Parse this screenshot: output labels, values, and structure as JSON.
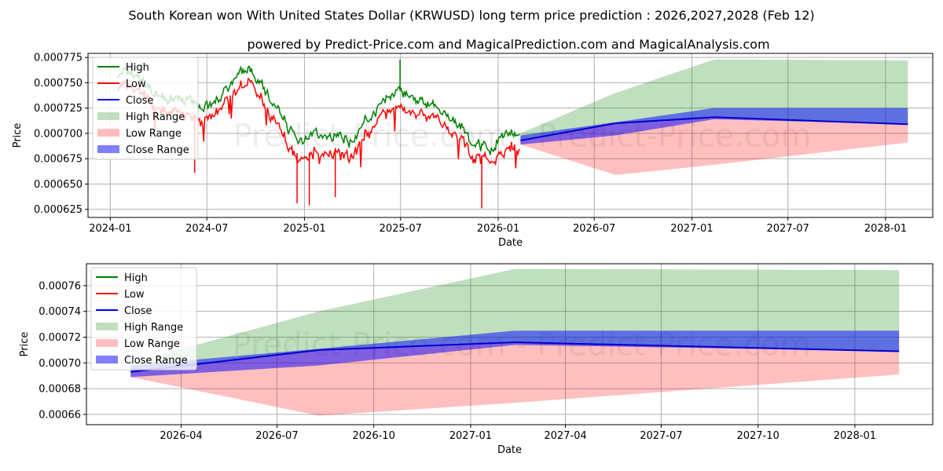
{
  "chart_data": [
    {
      "type": "line",
      "panel": "top",
      "title": "South Korean won With United States Dollar (KRWUSD) long term price prediction : 2026,2027,2028 (Feb 12)",
      "subtitle": "powered by Predict-Price.com and MagicalPrediction.com and MagicalAnalysis.com",
      "watermark": "Predict-Price.com - Predict-Price.com",
      "xlabel": "Date",
      "ylabel": "Price",
      "xlim": [
        "2023-11-20",
        "2028-03-30"
      ],
      "ylim": [
        0.000617,
        0.000779
      ],
      "x_ticks": [
        {
          "date": "2024-01-01",
          "label": "2024-01"
        },
        {
          "date": "2024-07-01",
          "label": "2024-07"
        },
        {
          "date": "2025-01-01",
          "label": "2025-01"
        },
        {
          "date": "2025-07-01",
          "label": "2025-07"
        },
        {
          "date": "2026-01-01",
          "label": "2026-01"
        },
        {
          "date": "2026-07-01",
          "label": "2026-07"
        },
        {
          "date": "2027-01-01",
          "label": "2027-01"
        },
        {
          "date": "2027-07-01",
          "label": "2027-07"
        },
        {
          "date": "2028-01-01",
          "label": "2028-01"
        }
      ],
      "y_ticks": [
        {
          "value": 0.000625,
          "label": "0.000625"
        },
        {
          "value": 0.00065,
          "label": "0.000650"
        },
        {
          "value": 0.000675,
          "label": "0.000675"
        },
        {
          "value": 0.0007,
          "label": "0.000700"
        },
        {
          "value": 0.000725,
          "label": "0.000725"
        },
        {
          "value": 0.00075,
          "label": "0.000750"
        },
        {
          "value": 0.000775,
          "label": "0.000775"
        }
      ],
      "legend": {
        "placement": "upper-left",
        "entries": [
          {
            "label": "High",
            "color": "#008000",
            "kind": "line"
          },
          {
            "label": "Low",
            "color": "#ff0000",
            "kind": "line"
          },
          {
            "label": "Close",
            "color": "#0000ff",
            "kind": "line"
          },
          {
            "label": "High Range",
            "color": "#008000",
            "kind": "patch",
            "alpha": 0.25
          },
          {
            "label": "Low Range",
            "color": "#ff0000",
            "kind": "patch",
            "alpha": 0.25
          },
          {
            "label": "Close Range",
            "color": "#0000ff",
            "kind": "patch",
            "alpha": 0.5
          }
        ]
      },
      "history_keypoints": {
        "dates": [
          "2024-01-15",
          "2024-02-15",
          "2024-03-15",
          "2024-04-15",
          "2024-05-15",
          "2024-06-15",
          "2024-07-15",
          "2024-08-15",
          "2024-09-05",
          "2024-09-20",
          "2024-10-15",
          "2024-11-15",
          "2024-12-10",
          "2024-12-31",
          "2025-01-20",
          "2025-02-15",
          "2025-03-15",
          "2025-04-05",
          "2025-04-20",
          "2025-05-15",
          "2025-06-15",
          "2025-07-05",
          "2025-08-15",
          "2025-09-15",
          "2025-10-15",
          "2025-11-15",
          "2025-12-15",
          "2026-01-05",
          "2026-01-25",
          "2026-02-12"
        ],
        "high": [
          0.000757,
          0.000755,
          0.000745,
          0.000733,
          0.000736,
          0.000728,
          0.000729,
          0.000748,
          0.00076,
          0.000764,
          0.000742,
          0.000722,
          0.0007,
          0.000693,
          0.0007,
          0.0007,
          0.000698,
          0.00069,
          0.000711,
          0.000719,
          0.00074,
          0.000742,
          0.00073,
          0.000722,
          0.000712,
          0.00069,
          0.000683,
          0.000698,
          0.000702,
          0.000698
        ],
        "low": [
          0.000748,
          0.000744,
          0.000735,
          0.000724,
          0.000724,
          0.000718,
          0.00072,
          0.00074,
          0.000748,
          0.000755,
          0.00073,
          0.00071,
          0.000682,
          0.000678,
          0.000684,
          0.000685,
          0.000686,
          0.000678,
          0.000698,
          0.00071,
          0.00073,
          0.000728,
          0.000721,
          0.000714,
          0.000703,
          0.00068,
          0.000676,
          0.000684,
          0.00069,
          0.000686
        ],
        "spikes": [
          {
            "date": "2024-06-08",
            "series": "low",
            "value": 0.000661
          },
          {
            "date": "2024-12-18",
            "series": "low",
            "value": 0.000631
          },
          {
            "date": "2025-01-10",
            "series": "low",
            "value": 0.000629
          },
          {
            "date": "2025-02-28",
            "series": "low",
            "value": 0.000637
          },
          {
            "date": "2025-06-30",
            "series": "high",
            "value": 0.000773
          },
          {
            "date": "2025-12-01",
            "series": "low",
            "value": 0.000626
          }
        ]
      },
      "forecast": {
        "dates": [
          "2026-02-12",
          "2026-08-10",
          "2027-02-12",
          "2028-02-12"
        ],
        "close": [
          0.000693,
          0.00071,
          0.000716,
          0.000709
        ],
        "high_range_upper": [
          0.0007,
          0.00074,
          0.000773,
          0.000772
        ],
        "close_range_upper": [
          0.000698,
          0.000711,
          0.000725,
          0.000725
        ],
        "close_range_lower": [
          0.000689,
          0.000698,
          0.000714,
          0.000709
        ],
        "low_range_lower": [
          0.000689,
          0.000659,
          0.000669,
          0.000691
        ]
      }
    },
    {
      "type": "line",
      "panel": "bottom",
      "watermark": "Predict-Price.com - Predict-Price.com",
      "xlabel": "Date",
      "ylabel": "Price",
      "xlim": [
        "2026-01-01",
        "2028-03-15"
      ],
      "ylim": [
        0.000652,
        0.000777
      ],
      "x_ticks": [
        {
          "date": "2026-04-01",
          "label": "2026-04"
        },
        {
          "date": "2026-07-01",
          "label": "2026-07"
        },
        {
          "date": "2026-10-01",
          "label": "2026-10"
        },
        {
          "date": "2027-01-01",
          "label": "2027-01"
        },
        {
          "date": "2027-04-01",
          "label": "2027-04"
        },
        {
          "date": "2027-07-01",
          "label": "2027-07"
        },
        {
          "date": "2027-10-01",
          "label": "2027-10"
        },
        {
          "date": "2028-01-01",
          "label": "2028-01"
        }
      ],
      "y_ticks": [
        {
          "value": 0.00066,
          "label": "0.00066"
        },
        {
          "value": 0.00068,
          "label": "0.00068"
        },
        {
          "value": 0.0007,
          "label": "0.00070"
        },
        {
          "value": 0.00072,
          "label": "0.00072"
        },
        {
          "value": 0.00074,
          "label": "0.00074"
        },
        {
          "value": 0.00076,
          "label": "0.00076"
        }
      ],
      "legend": {
        "placement": "upper-left",
        "entries": [
          {
            "label": "High",
            "color": "#008000",
            "kind": "line"
          },
          {
            "label": "Low",
            "color": "#ff0000",
            "kind": "line"
          },
          {
            "label": "Close",
            "color": "#0000ff",
            "kind": "line"
          },
          {
            "label": "High Range",
            "color": "#008000",
            "kind": "patch",
            "alpha": 0.25
          },
          {
            "label": "Low Range",
            "color": "#ff0000",
            "kind": "patch",
            "alpha": 0.25
          },
          {
            "label": "Close Range",
            "color": "#0000ff",
            "kind": "patch",
            "alpha": 0.5
          }
        ]
      },
      "forecast": {
        "dates": [
          "2026-02-12",
          "2026-08-10",
          "2027-02-12",
          "2028-02-12"
        ],
        "close": [
          0.000693,
          0.00071,
          0.000716,
          0.000709
        ],
        "high_range_upper": [
          0.0007,
          0.00074,
          0.000773,
          0.000772
        ],
        "close_range_upper": [
          0.000698,
          0.000711,
          0.000725,
          0.000725
        ],
        "close_range_lower": [
          0.000689,
          0.000698,
          0.000714,
          0.000709
        ],
        "low_range_lower": [
          0.000689,
          0.000659,
          0.000669,
          0.000691
        ]
      }
    }
  ]
}
